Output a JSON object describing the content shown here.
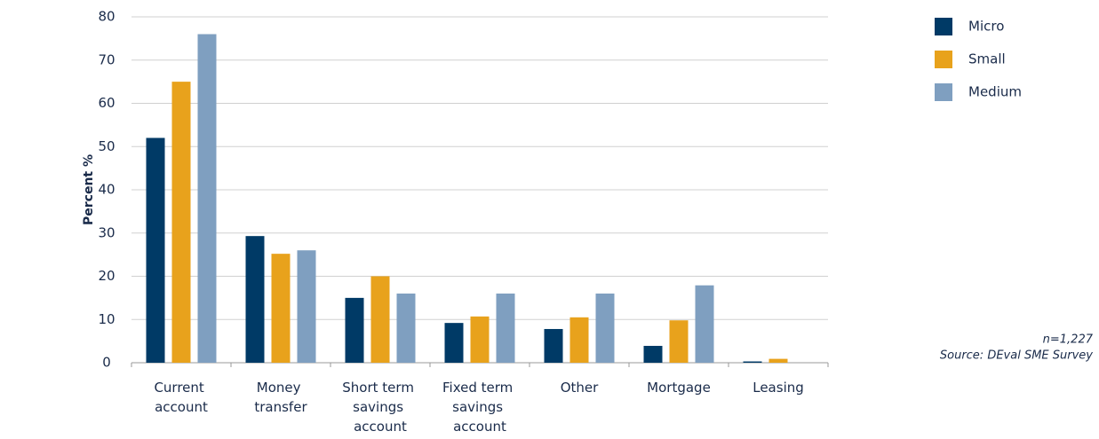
{
  "chart_data": {
    "type": "bar",
    "y_label": "Percent %",
    "categories": [
      "Current account",
      "Money transfer",
      "Short term savings account",
      "Fixed term savings account",
      "Other",
      "Mortgage",
      "Leasing"
    ],
    "series": [
      {
        "name": "Micro",
        "color": "#003a66",
        "values": [
          52,
          29.3,
          15,
          9.2,
          7.8,
          3.9,
          0.3
        ]
      },
      {
        "name": "Small",
        "color": "#e8a21c",
        "values": [
          65,
          25.2,
          20,
          10.7,
          10.5,
          9.8,
          0.9
        ]
      },
      {
        "name": "Medium",
        "color": "#7f9fc0",
        "values": [
          76,
          26,
          16,
          16,
          16,
          17.9,
          0
        ]
      }
    ],
    "ylim": [
      0,
      80
    ],
    "yticks": [
      0,
      10,
      20,
      30,
      40,
      50,
      60,
      70,
      80
    ],
    "grid": true,
    "notes": [
      "n=1,227",
      "Source: DEval SME Survey"
    ]
  }
}
